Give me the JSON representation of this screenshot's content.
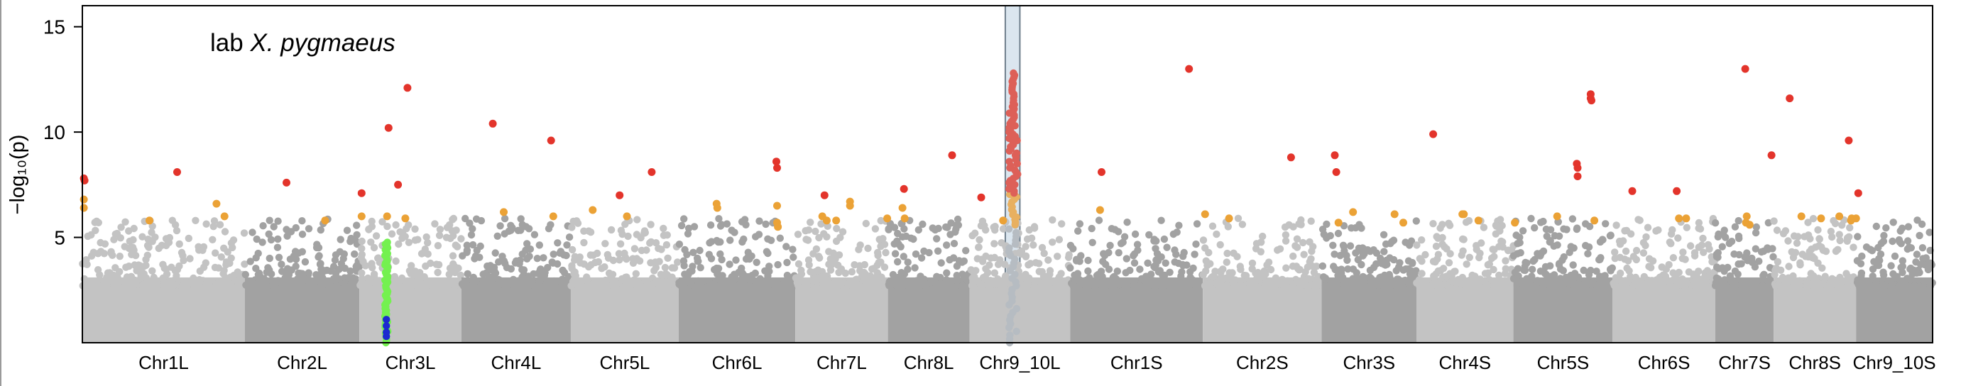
{
  "chart_data": {
    "type": "scatter",
    "subtype": "manhattan",
    "title": "lab",
    "title_italic": "X. pygmaeus",
    "ylabel": "−log₁₀(p)",
    "ylim": [
      0,
      16
    ],
    "yticks": [
      5,
      10,
      15
    ],
    "grid": false,
    "legend": "none",
    "colors": {
      "chrom_light": "#c3c3c3",
      "chrom_dark": "#a2a2a2",
      "high": "#e3342b",
      "mid": "#eba236",
      "peak_high": "#dd6058",
      "peak_mid": "#e8b060",
      "peak_low": "#b6bcc2",
      "highlight_fill": "#dbe6ef",
      "highlight_edge": "#6f7f8c",
      "green": "#74f150",
      "blue": "#1c29cf",
      "axis": "#000000"
    },
    "chromosomes": [
      "Chr1L",
      "Chr2L",
      "Chr3L",
      "Chr4L",
      "Chr5L",
      "Chr6L",
      "Chr7L",
      "Chr8L",
      "Chr9_10L",
      "Chr1S",
      "Chr2S",
      "Chr3S",
      "Chr4S",
      "Chr5S",
      "Chr6S",
      "Chr7S",
      "Chr8S",
      "Chr9_10S"
    ],
    "chrom_span": [
      [
        0.0,
        223.0
      ],
      [
        223.0,
        380.0
      ],
      [
        380.0,
        520.0
      ],
      [
        520.0,
        670.0
      ],
      [
        670.0,
        818.0
      ],
      [
        818.0,
        978.0
      ],
      [
        978.0,
        1105.0
      ],
      [
        1105.0,
        1217.0
      ],
      [
        1217.0,
        1355.0
      ],
      [
        1355.0,
        1537.0
      ],
      [
        1537.0,
        1700.0
      ],
      [
        1700.0,
        1830.0
      ],
      [
        1830.0,
        1963.0
      ],
      [
        1963.0,
        2099.0
      ],
      [
        2099.0,
        2240.0
      ],
      [
        2240.0,
        2320.0
      ],
      [
        2320.0,
        2433.0
      ],
      [
        2433.0,
        2538.0
      ]
    ],
    "xlim": [
      0,
      2538
    ],
    "highlight_region": [
      1266,
      1286
    ],
    "significant_snps": [
      {
        "x": 2,
        "y": 7.8
      },
      {
        "x": 3,
        "y": 7.7
      },
      {
        "x": 2,
        "y": 6.8
      },
      {
        "x": 2,
        "y": 6.4
      },
      {
        "x": 92,
        "y": 5.8
      },
      {
        "x": 130,
        "y": 8.1
      },
      {
        "x": 184,
        "y": 6.6
      },
      {
        "x": 195,
        "y": 6.0
      },
      {
        "x": 280,
        "y": 7.6
      },
      {
        "x": 333,
        "y": 5.8
      },
      {
        "x": 383,
        "y": 7.1
      },
      {
        "x": 383,
        "y": 6.0
      },
      {
        "x": 418,
        "y": 6.0
      },
      {
        "x": 420,
        "y": 10.2
      },
      {
        "x": 433,
        "y": 7.5
      },
      {
        "x": 443,
        "y": 5.9
      },
      {
        "x": 446,
        "y": 12.1
      },
      {
        "x": 563,
        "y": 10.4
      },
      {
        "x": 578,
        "y": 6.2
      },
      {
        "x": 643,
        "y": 9.6
      },
      {
        "x": 646,
        "y": 6.0
      },
      {
        "x": 700,
        "y": 6.3
      },
      {
        "x": 737,
        "y": 7.0
      },
      {
        "x": 747,
        "y": 6.0
      },
      {
        "x": 781,
        "y": 8.1
      },
      {
        "x": 870,
        "y": 6.6
      },
      {
        "x": 871,
        "y": 6.4
      },
      {
        "x": 952,
        "y": 8.6
      },
      {
        "x": 953,
        "y": 8.3
      },
      {
        "x": 953,
        "y": 6.5
      },
      {
        "x": 953,
        "y": 5.7
      },
      {
        "x": 954,
        "y": 5.5
      },
      {
        "x": 1018,
        "y": 7.0
      },
      {
        "x": 1015,
        "y": 6.0
      },
      {
        "x": 1021,
        "y": 5.8
      },
      {
        "x": 1034,
        "y": 5.8
      },
      {
        "x": 1053,
        "y": 6.7
      },
      {
        "x": 1053,
        "y": 6.5
      },
      {
        "x": 1104,
        "y": 5.9
      },
      {
        "x": 1127,
        "y": 7.3
      },
      {
        "x": 1125,
        "y": 6.4
      },
      {
        "x": 1128,
        "y": 5.9
      },
      {
        "x": 1193,
        "y": 8.9
      },
      {
        "x": 1233,
        "y": 6.9
      },
      {
        "x": 1263,
        "y": 5.8
      },
      {
        "x": 1398,
        "y": 8.1
      },
      {
        "x": 1396,
        "y": 6.3
      },
      {
        "x": 1518,
        "y": 13.0
      },
      {
        "x": 1540,
        "y": 6.1
      },
      {
        "x": 1573,
        "y": 5.9
      },
      {
        "x": 1658,
        "y": 8.8
      },
      {
        "x": 1718,
        "y": 8.9
      },
      {
        "x": 1720,
        "y": 8.1
      },
      {
        "x": 1723,
        "y": 5.7
      },
      {
        "x": 1743,
        "y": 6.2
      },
      {
        "x": 1853,
        "y": 9.9
      },
      {
        "x": 1800,
        "y": 6.1
      },
      {
        "x": 1812,
        "y": 5.7
      },
      {
        "x": 1893,
        "y": 6.1
      },
      {
        "x": 1895,
        "y": 6.1
      },
      {
        "x": 1915,
        "y": 5.8
      },
      {
        "x": 1965,
        "y": 5.7
      },
      {
        "x": 2023,
        "y": 6.0
      },
      {
        "x": 2050,
        "y": 8.5
      },
      {
        "x": 2051,
        "y": 8.3
      },
      {
        "x": 2051,
        "y": 7.9
      },
      {
        "x": 2069,
        "y": 11.6
      },
      {
        "x": 2069,
        "y": 11.8
      },
      {
        "x": 2070,
        "y": 11.5
      },
      {
        "x": 2074,
        "y": 5.8
      },
      {
        "x": 2126,
        "y": 7.2
      },
      {
        "x": 2187,
        "y": 7.2
      },
      {
        "x": 2190,
        "y": 5.9
      },
      {
        "x": 2200,
        "y": 5.9
      },
      {
        "x": 2281,
        "y": 13.0
      },
      {
        "x": 2282,
        "y": 5.7
      },
      {
        "x": 2283,
        "y": 6.0
      },
      {
        "x": 2287,
        "y": 5.6
      },
      {
        "x": 2317,
        "y": 8.9
      },
      {
        "x": 2342,
        "y": 11.6
      },
      {
        "x": 2358,
        "y": 6.0
      },
      {
        "x": 2423,
        "y": 9.6
      },
      {
        "x": 2427,
        "y": 5.9
      },
      {
        "x": 2436,
        "y": 7.1
      },
      {
        "x": 2433,
        "y": 5.9
      },
      {
        "x": 2426,
        "y": 5.8
      },
      {
        "x": 2410,
        "y": 6.0
      },
      {
        "x": 2385,
        "y": 5.9
      }
    ],
    "peak_column": {
      "x_range": [
        1271,
        1283
      ],
      "top": 12.8,
      "high_from": 7.1,
      "mid_from": 5.6
    },
    "green_column": {
      "x": 417,
      "from": 0.0,
      "to": 4.8
    },
    "blue_snps": [
      {
        "x": 417,
        "y": 0.3
      },
      {
        "x": 417,
        "y": 0.5
      },
      {
        "x": 417,
        "y": 0.8
      },
      {
        "x": 417,
        "y": 1.1
      }
    ],
    "background": {
      "base_max": 3.1,
      "spread_max": 5.9
    }
  }
}
